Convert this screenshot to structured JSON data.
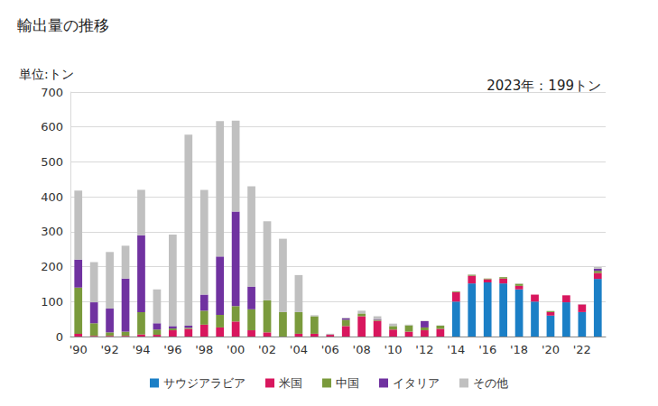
{
  "chart_data": {
    "type": "bar",
    "title": "輸出量の推移",
    "y_label": "単位:トン",
    "annotation": "2023年：199トン",
    "categories": [
      "'90",
      null,
      "'92",
      null,
      "'94",
      null,
      "'96",
      null,
      "'98",
      null,
      "'00",
      null,
      "'02",
      null,
      "'04",
      null,
      "'06",
      null,
      "'08",
      null,
      "'10",
      null,
      "'12",
      null,
      "'14",
      null,
      "'16",
      null,
      "'18",
      null,
      "'20",
      null,
      "'22",
      null
    ],
    "series": [
      {
        "name": "サウジアラビア",
        "color": "#1b7fc6",
        "values": [
          0,
          0,
          0,
          0,
          0,
          0,
          0,
          0,
          0,
          0,
          0,
          0,
          0,
          0,
          0,
          0,
          0,
          0,
          0,
          0,
          0,
          0,
          0,
          0,
          100,
          152,
          155,
          152,
          135,
          100,
          60,
          98,
          70,
          165
        ]
      },
      {
        "name": "米国",
        "color": "#d8175e",
        "values": [
          8,
          2,
          2,
          2,
          6,
          5,
          18,
          22,
          34,
          26,
          43,
          18,
          12,
          0,
          8,
          8,
          5,
          30,
          58,
          45,
          20,
          14,
          18,
          22,
          27,
          22,
          9,
          14,
          10,
          20,
          10,
          20,
          22,
          17
        ]
      },
      {
        "name": "中国",
        "color": "#7a9a3c",
        "values": [
          132,
          36,
          10,
          12,
          64,
          15,
          5,
          3,
          40,
          36,
          44,
          60,
          92,
          70,
          62,
          50,
          0,
          18,
          8,
          3,
          10,
          18,
          8,
          9,
          2,
          3,
          2,
          4,
          6,
          0,
          3,
          0,
          0,
          6
        ]
      },
      {
        "name": "イタリア",
        "color": "#7032a0",
        "values": [
          80,
          60,
          68,
          152,
          220,
          18,
          7,
          6,
          46,
          167,
          271,
          65,
          0,
          0,
          0,
          0,
          0,
          4,
          0,
          2,
          0,
          0,
          18,
          0,
          0,
          0,
          0,
          0,
          0,
          0,
          0,
          0,
          0,
          6
        ]
      },
      {
        "name": "その他",
        "color": "#c0c0c0",
        "values": [
          198,
          115,
          162,
          94,
          130,
          97,
          262,
          547,
          300,
          388,
          260,
          287,
          226,
          210,
          106,
          3,
          3,
          2,
          8,
          8,
          7,
          2,
          1,
          1,
          1,
          1,
          0,
          0,
          1,
          0,
          0,
          0,
          1,
          5
        ]
      }
    ],
    "ylim": [
      0,
      700
    ],
    "yticks": [
      0,
      100,
      200,
      300,
      400,
      500,
      600,
      700
    ],
    "grid": true,
    "stacked": true,
    "legend": "bottom"
  }
}
